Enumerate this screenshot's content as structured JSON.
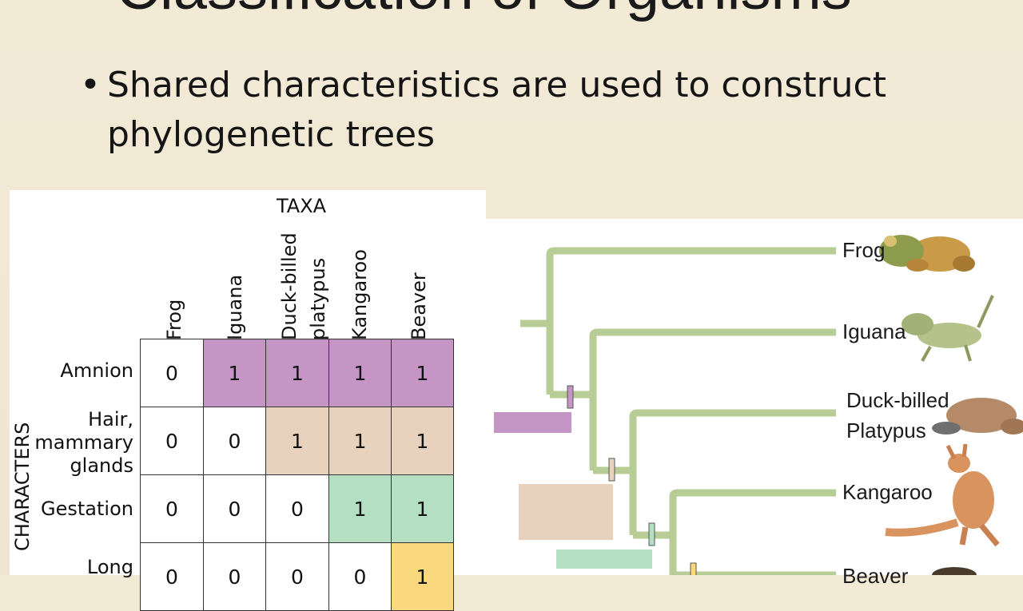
{
  "slide": {
    "title": "Classification of Organisms",
    "bullet": "Shared characteristics are used to construct phylogenetic trees"
  },
  "matrix": {
    "taxa_label": "TAXA",
    "characters_label": "CHARACTERS",
    "taxa": [
      "Frog",
      "Iguana",
      "Duck-billed platypus",
      "Kangaroo",
      "Beaver"
    ],
    "rows": [
      {
        "character": "Amnion",
        "values": [
          "0",
          "1",
          "1",
          "1",
          "1"
        ]
      },
      {
        "character": "Hair, mammary glands",
        "values": [
          "0",
          "0",
          "1",
          "1",
          "1"
        ]
      },
      {
        "character": "Gestation",
        "values": [
          "0",
          "0",
          "0",
          "1",
          "1"
        ]
      },
      {
        "character": "Long",
        "values": [
          "0",
          "0",
          "0",
          "0",
          "1"
        ]
      }
    ],
    "colors": {
      "amnion": "#c595c6",
      "hair": "#e8d2bd",
      "gestation": "#b5dfc3",
      "long": "#fad87d",
      "branch": "#b8cc96"
    }
  },
  "tree": {
    "taxa": [
      "Frog",
      "Iguana",
      "Duck-billed",
      "Platypus",
      "Kangaroo",
      "Beaver"
    ]
  }
}
